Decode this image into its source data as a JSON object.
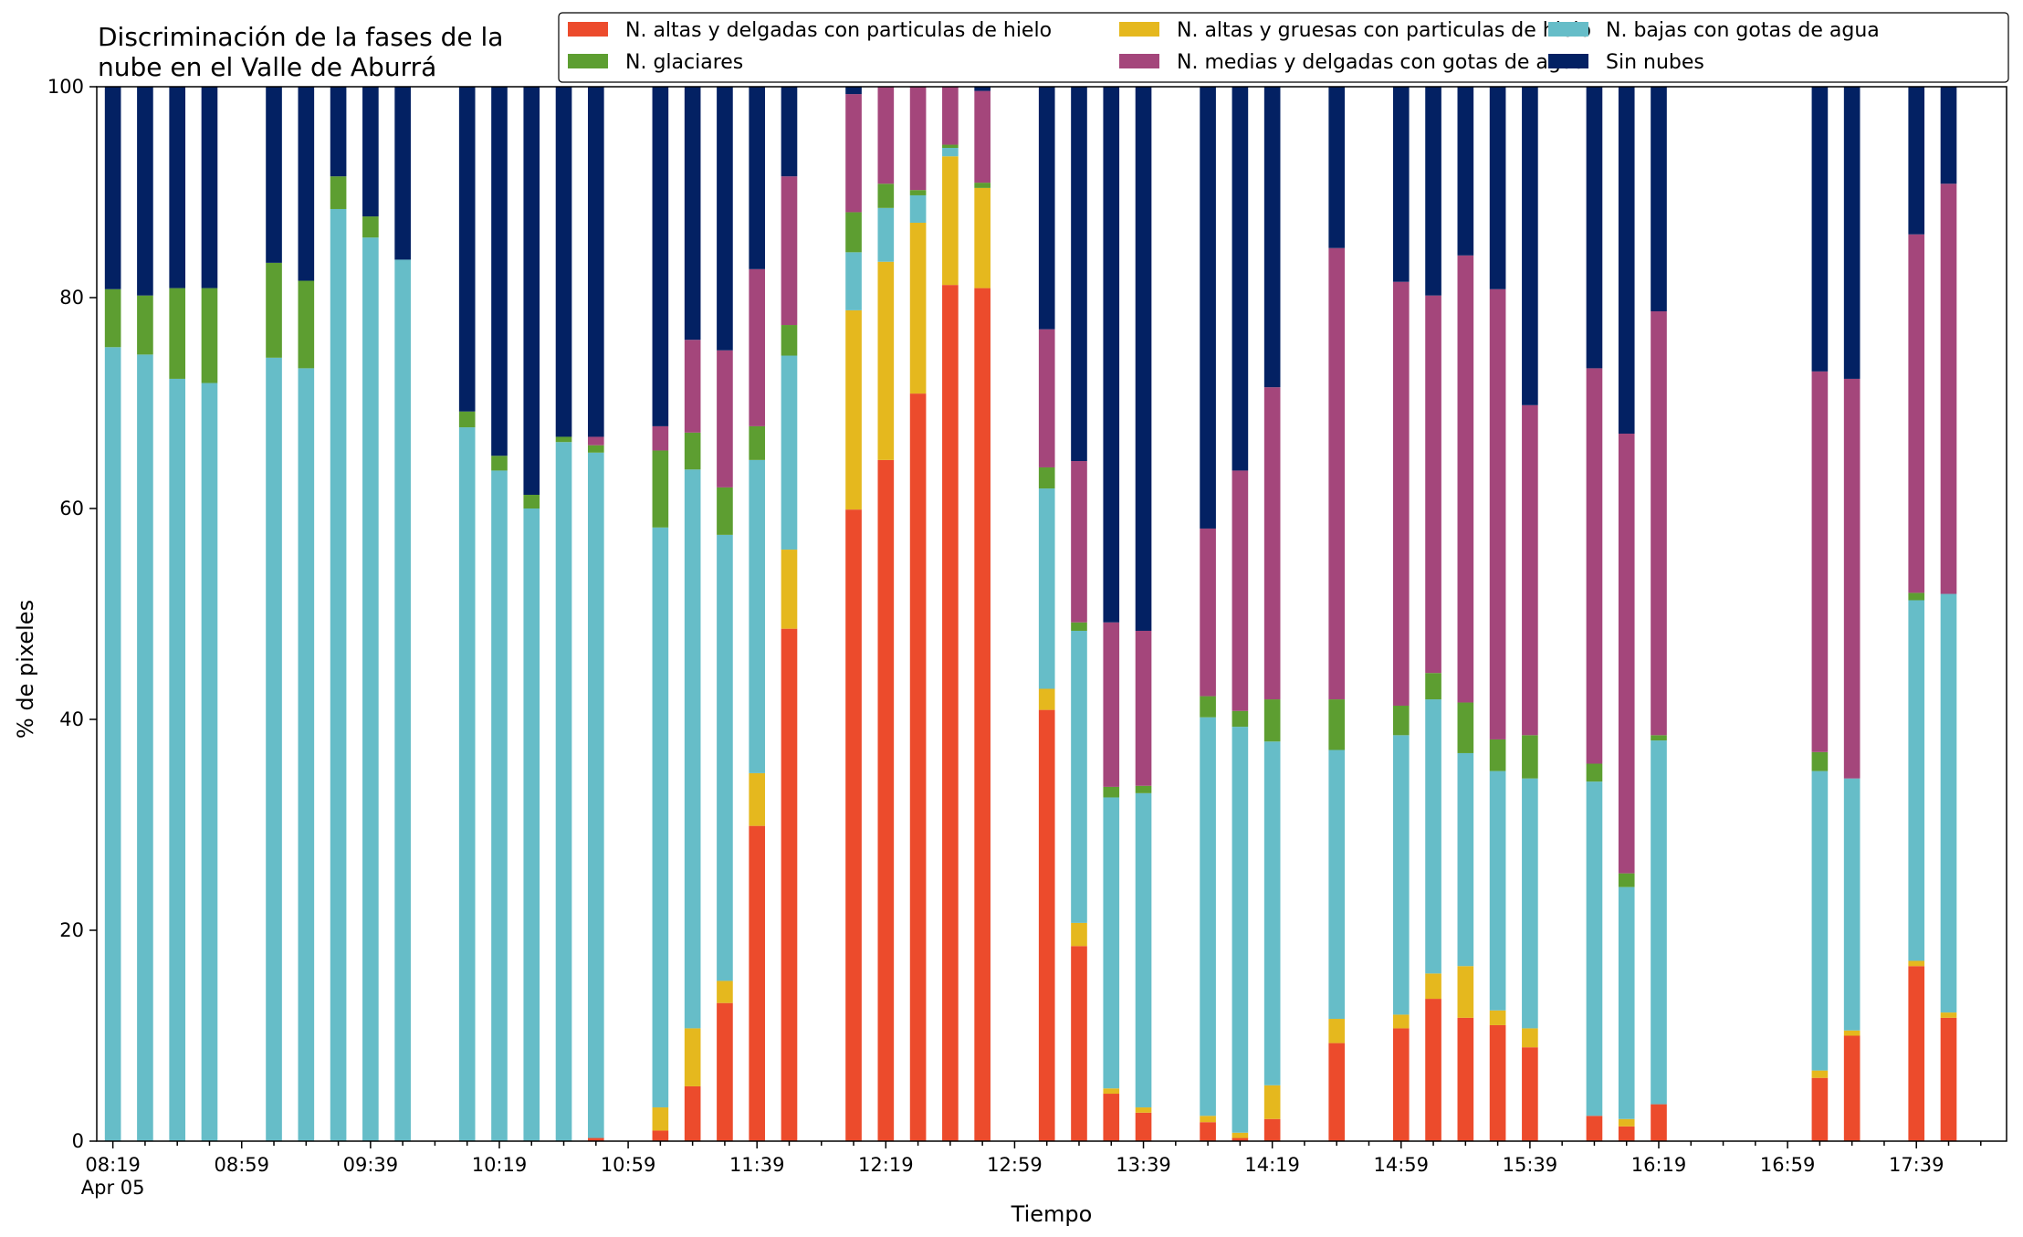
{
  "chart_data": {
    "type": "bar",
    "stacked": true,
    "title": "Discriminación de la fases de la nube en el Valle de Aburrá",
    "title_lines": [
      "Discriminación de la fases de la",
      "nube en el Valle de Aburrá"
    ],
    "xlabel": "Tiempo",
    "ylabel": "% de pixeles",
    "ylim": [
      0,
      100
    ],
    "yticks": [
      0,
      20,
      40,
      60,
      80,
      100
    ],
    "xlim": [
      "08:14",
      "18:07"
    ],
    "xticks": [
      "08:19",
      "08:59",
      "09:39",
      "10:19",
      "10:59",
      "11:39",
      "12:19",
      "12:59",
      "13:39",
      "14:19",
      "14:59",
      "15:39",
      "16:19",
      "16:59",
      "17:39"
    ],
    "xtick_date": "Apr 05",
    "grid": false,
    "legend_position": "top-right",
    "legend_columns": 3,
    "series": [
      {
        "name": "N. altas y delgadas con particulas de hielo",
        "color": "#ec4b2c"
      },
      {
        "name": "N. altas y gruesas con particulas de hielo",
        "color": "#e5b81e"
      },
      {
        "name": "N. bajas con gotas de agua",
        "color": "#66bdc8"
      },
      {
        "name": "N. glaciares",
        "color": "#5d9e31"
      },
      {
        "name": "N. medias y delgadas con gotas de agua",
        "color": "#a4467b"
      },
      {
        "name": "Sin nubes",
        "color": "#032163"
      }
    ],
    "bars": [
      {
        "time": "08:19",
        "values": [
          0,
          0,
          75.3,
          5.5,
          0,
          19.2
        ]
      },
      {
        "time": "08:29",
        "values": [
          0,
          0,
          74.6,
          5.6,
          0,
          19.8
        ]
      },
      {
        "time": "08:39",
        "values": [
          0,
          0,
          72.3,
          8.6,
          0,
          19.1
        ]
      },
      {
        "time": "08:49",
        "values": [
          0,
          0,
          71.9,
          9.0,
          0,
          19.1
        ]
      },
      {
        "time": "09:09",
        "values": [
          0,
          0,
          74.3,
          9.0,
          0,
          16.7
        ]
      },
      {
        "time": "09:19",
        "values": [
          0,
          0,
          73.3,
          8.3,
          0,
          18.4
        ]
      },
      {
        "time": "09:29",
        "values": [
          0,
          0,
          88.4,
          3.1,
          0,
          8.5
        ]
      },
      {
        "time": "09:39",
        "values": [
          0,
          0,
          85.7,
          2.0,
          0,
          12.3
        ]
      },
      {
        "time": "09:49",
        "values": [
          0,
          0,
          83.6,
          0,
          0,
          16.4
        ]
      },
      {
        "time": "10:09",
        "values": [
          0,
          0,
          67.7,
          1.5,
          0,
          30.8
        ]
      },
      {
        "time": "10:19",
        "values": [
          0,
          0,
          63.6,
          1.4,
          0,
          35.0
        ]
      },
      {
        "time": "10:29",
        "values": [
          0,
          0,
          60.0,
          1.3,
          0,
          38.7
        ]
      },
      {
        "time": "10:39",
        "values": [
          0,
          0,
          66.3,
          0.5,
          0,
          33.2
        ]
      },
      {
        "time": "10:49",
        "values": [
          0.3,
          0,
          65.0,
          0.7,
          0.8,
          33.2
        ]
      },
      {
        "time": "11:09",
        "values": [
          1.0,
          2.2,
          55.0,
          7.3,
          2.3,
          32.2
        ]
      },
      {
        "time": "11:19",
        "values": [
          5.2,
          5.5,
          53.0,
          3.5,
          8.8,
          24.0
        ]
      },
      {
        "time": "11:29",
        "values": [
          13.1,
          2.1,
          42.3,
          4.5,
          13.0,
          25.0
        ]
      },
      {
        "time": "11:39",
        "values": [
          29.9,
          5.0,
          29.7,
          3.2,
          14.9,
          17.3
        ]
      },
      {
        "time": "11:49",
        "values": [
          48.6,
          7.5,
          18.4,
          2.9,
          14.1,
          8.5
        ]
      },
      {
        "time": "12:09",
        "values": [
          59.9,
          18.9,
          5.5,
          3.8,
          11.2,
          0.7
        ]
      },
      {
        "time": "12:19",
        "values": [
          64.6,
          18.8,
          5.1,
          2.3,
          9.2,
          0
        ]
      },
      {
        "time": "12:29",
        "values": [
          70.9,
          16.2,
          2.6,
          0.5,
          9.8,
          0
        ]
      },
      {
        "time": "12:39",
        "values": [
          81.2,
          12.2,
          0.8,
          0.3,
          5.5,
          0
        ]
      },
      {
        "time": "12:49",
        "values": [
          80.9,
          9.5,
          0,
          0.5,
          8.7,
          0.4
        ]
      },
      {
        "time": "13:09",
        "values": [
          40.9,
          2.0,
          19.0,
          2.0,
          13.1,
          23.0
        ]
      },
      {
        "time": "13:19",
        "values": [
          18.5,
          2.2,
          27.7,
          0.8,
          15.3,
          35.5
        ]
      },
      {
        "time": "13:29",
        "values": [
          4.5,
          0.5,
          27.6,
          1.0,
          15.6,
          50.8
        ]
      },
      {
        "time": "13:39",
        "values": [
          2.7,
          0.5,
          29.8,
          0.7,
          14.7,
          51.6
        ]
      },
      {
        "time": "13:59",
        "values": [
          1.8,
          0.6,
          37.8,
          2.0,
          15.9,
          41.9
        ]
      },
      {
        "time": "14:09",
        "values": [
          0.3,
          0.5,
          38.5,
          1.5,
          22.8,
          36.4
        ]
      },
      {
        "time": "14:19",
        "values": [
          2.1,
          3.2,
          32.6,
          4.0,
          29.6,
          28.5
        ]
      },
      {
        "time": "14:39",
        "values": [
          9.3,
          2.3,
          25.5,
          4.8,
          42.8,
          15.3
        ]
      },
      {
        "time": "14:59",
        "values": [
          10.7,
          1.3,
          26.5,
          2.8,
          40.2,
          18.5
        ]
      },
      {
        "time": "15:09",
        "values": [
          13.5,
          2.4,
          26.0,
          2.5,
          35.8,
          19.8
        ]
      },
      {
        "time": "15:19",
        "values": [
          11.7,
          4.9,
          20.2,
          4.8,
          42.4,
          16.0
        ]
      },
      {
        "time": "15:29",
        "values": [
          11.0,
          1.4,
          22.7,
          3.0,
          42.7,
          19.2
        ]
      },
      {
        "time": "15:39",
        "values": [
          8.9,
          1.8,
          23.7,
          4.1,
          31.3,
          30.2
        ]
      },
      {
        "time": "15:59",
        "values": [
          2.4,
          0,
          31.7,
          1.7,
          37.5,
          26.7
        ]
      },
      {
        "time": "16:09",
        "values": [
          1.4,
          0.7,
          22.0,
          1.3,
          41.7,
          32.9
        ]
      },
      {
        "time": "16:19",
        "values": [
          3.5,
          0,
          34.5,
          0.5,
          40.2,
          21.3
        ]
      },
      {
        "time": "17:09",
        "values": [
          6.0,
          0.7,
          28.4,
          1.8,
          36.1,
          27.0
        ]
      },
      {
        "time": "17:19",
        "values": [
          10.0,
          0.5,
          23.9,
          0,
          37.9,
          27.7
        ]
      },
      {
        "time": "17:39",
        "values": [
          16.6,
          0.5,
          34.2,
          0.7,
          34.0,
          14.0
        ]
      },
      {
        "time": "17:49",
        "values": [
          11.7,
          0.5,
          39.7,
          0,
          38.9,
          9.2
        ]
      }
    ]
  }
}
